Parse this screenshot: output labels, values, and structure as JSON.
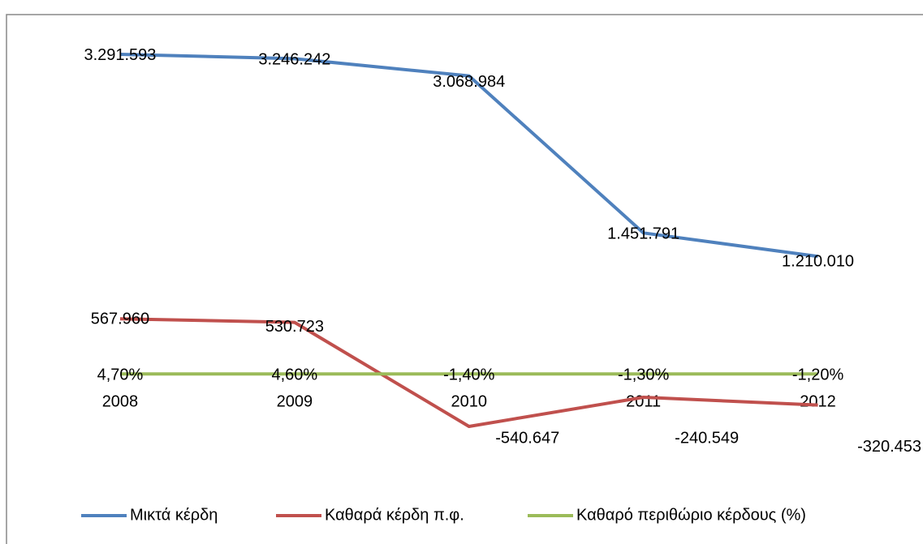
{
  "chart_data": {
    "type": "line",
    "categories": [
      "2008",
      "2009",
      "2010",
      "2011",
      "2012"
    ],
    "series": [
      {
        "name": "Μικτά κέρδη",
        "color": "#4f81bd",
        "values": [
          3291593,
          3246242,
          3068984,
          1451791,
          1210010
        ],
        "value_labels": [
          "3.291.593",
          "3.246.242",
          "3.068.984",
          "1.451.791",
          "1.210.010"
        ]
      },
      {
        "name": "Καθαρά κέρδη π.φ.",
        "color": "#c0504d",
        "values": [
          567960,
          530723,
          -540647,
          -240549,
          -320453
        ],
        "value_labels": [
          "567.960",
          "530.723",
          "-540.647",
          "-240.549",
          "-320.453"
        ]
      },
      {
        "name": "Καθαρό περιθώριο κέρδους (%)",
        "color": "#9bbb59",
        "values": [
          4.7,
          4.6,
          -1.4,
          -1.3,
          -1.2
        ],
        "value_labels": [
          "4,70%",
          "4,60%",
          "-1,40%",
          "-1,30%",
          "-1,20%"
        ]
      }
    ],
    "ylim": [
      -1000000,
      3500000
    ],
    "legend": "bottom"
  }
}
